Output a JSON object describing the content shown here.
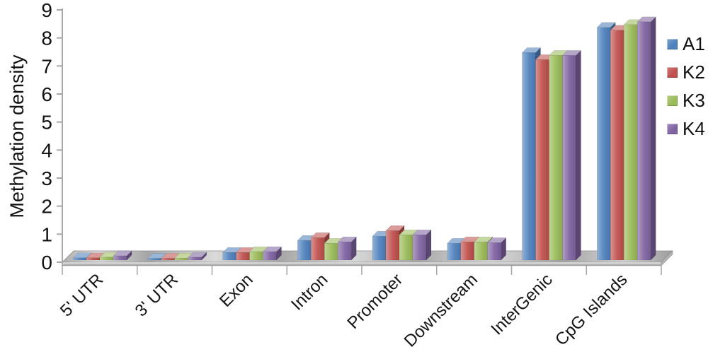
{
  "chart_data": {
    "type": "bar",
    "style": "3d-clustered",
    "title": "",
    "xlabel": "",
    "ylabel": "Methylation density",
    "ylim": [
      0,
      9
    ],
    "yticks": [
      0,
      1,
      2,
      3,
      4,
      5,
      6,
      7,
      8,
      9
    ],
    "grid": false,
    "legend_position": "right",
    "categories": [
      "5' UTR",
      "3' UTR",
      "Exon",
      "Intron",
      "Promoter",
      "Downstream",
      "InterGenic",
      "CpG Islands"
    ],
    "series": [
      {
        "name": "A1",
        "color": "#4F81BD",
        "values": [
          0.08,
          0.06,
          0.27,
          0.7,
          0.85,
          0.6,
          7.4,
          8.3
        ]
      },
      {
        "name": "K2",
        "color": "#C0504D",
        "values": [
          0.08,
          0.06,
          0.27,
          0.8,
          1.05,
          0.65,
          7.15,
          8.2
        ]
      },
      {
        "name": "K3",
        "color": "#9BBB59",
        "values": [
          0.1,
          0.07,
          0.3,
          0.6,
          0.9,
          0.65,
          7.3,
          8.4
        ]
      },
      {
        "name": "K4",
        "color": "#8064A2",
        "values": [
          0.15,
          0.1,
          0.3,
          0.65,
          0.9,
          0.62,
          7.3,
          8.5
        ]
      }
    ]
  }
}
